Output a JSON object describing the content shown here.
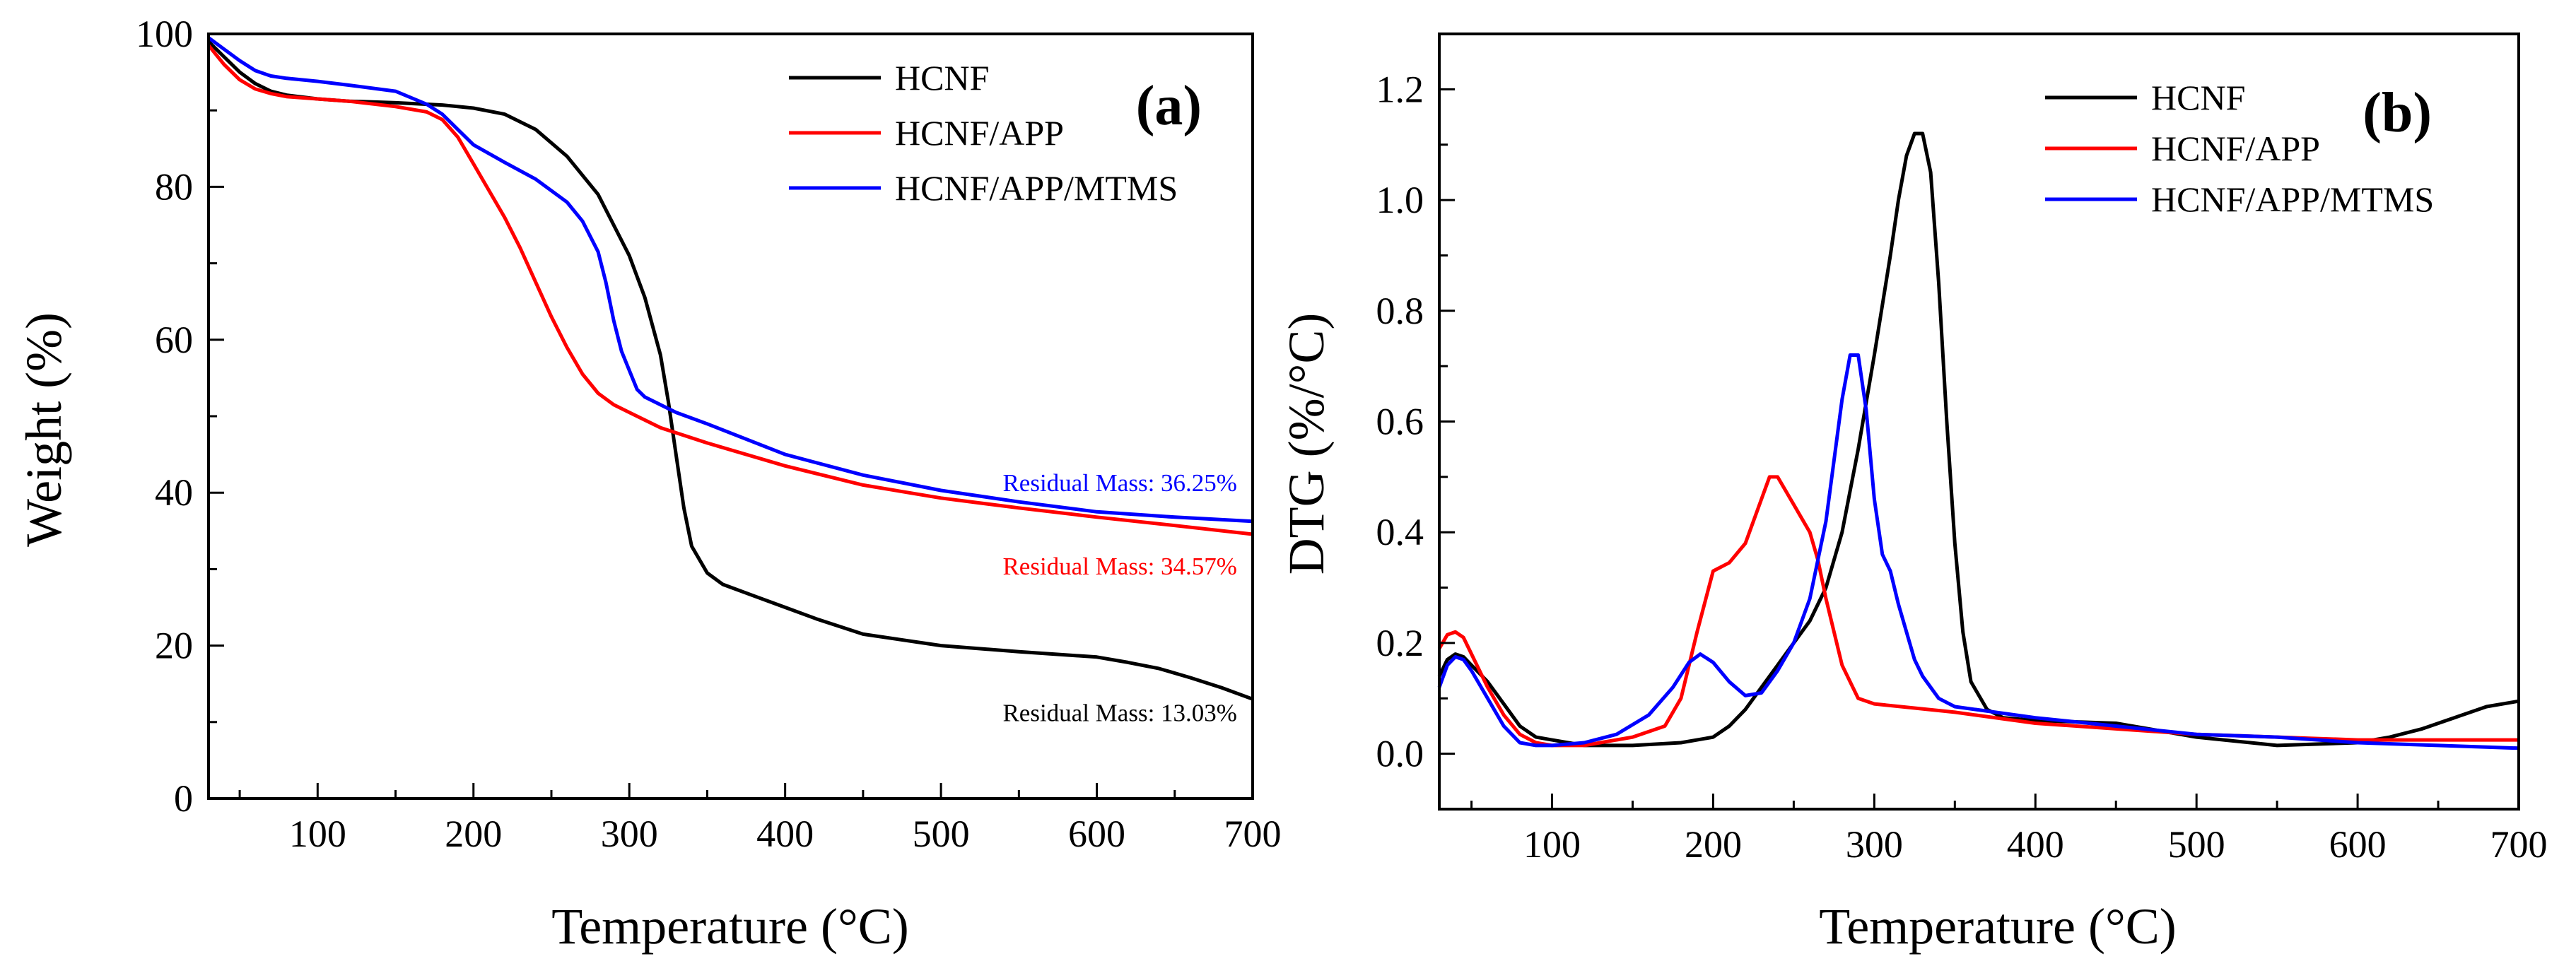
{
  "chart_data": [
    {
      "type": "line",
      "panel_label": "(a)",
      "xlabel": "Temperature (°C)",
      "ylabel": "Weight (%)",
      "xlim": [
        30,
        700
      ],
      "ylim": [
        0,
        100
      ],
      "xticks": [
        100,
        200,
        300,
        400,
        500,
        600,
        700
      ],
      "yticks": [
        0,
        20,
        40,
        60,
        80,
        100
      ],
      "grid": false,
      "legend_position": "top-right",
      "series": [
        {
          "name": "HCNF",
          "color": "#000000",
          "x": [
            30,
            40,
            50,
            60,
            70,
            80,
            100,
            120,
            150,
            180,
            200,
            220,
            240,
            260,
            280,
            300,
            310,
            320,
            325,
            330,
            335,
            340,
            350,
            360,
            380,
            400,
            420,
            450,
            500,
            550,
            600,
            620,
            640,
            660,
            680,
            700
          ],
          "y": [
            99,
            97,
            95,
            93.5,
            92.5,
            92,
            91.5,
            91.2,
            91,
            90.7,
            90.3,
            89.5,
            87.5,
            84,
            79,
            71,
            65.5,
            58,
            52,
            45,
            38,
            33,
            29.5,
            28,
            26.5,
            25,
            23.5,
            21.5,
            20,
            19.2,
            18.5,
            17.8,
            17,
            15.8,
            14.5,
            13
          ]
        },
        {
          "name": "HCNF/APP",
          "color": "#ff0000",
          "x": [
            30,
            40,
            50,
            60,
            70,
            80,
            100,
            120,
            150,
            170,
            180,
            190,
            200,
            210,
            220,
            230,
            240,
            250,
            260,
            270,
            280,
            290,
            300,
            320,
            350,
            400,
            450,
            500,
            550,
            600,
            650,
            700
          ],
          "y": [
            98.5,
            96,
            94,
            92.8,
            92.2,
            91.8,
            91.5,
            91.2,
            90.5,
            89.8,
            88.8,
            86.5,
            83,
            79.5,
            76,
            72,
            67.5,
            63,
            59,
            55.5,
            53,
            51.5,
            50.5,
            48.5,
            46.5,
            43.5,
            41,
            39.3,
            38,
            36.8,
            35.7,
            34.57
          ]
        },
        {
          "name": "HCNF/APP/MTMS",
          "color": "#0000ff",
          "x": [
            30,
            40,
            50,
            60,
            70,
            80,
            100,
            120,
            150,
            170,
            180,
            190,
            200,
            220,
            240,
            260,
            270,
            280,
            285,
            290,
            295,
            300,
            305,
            310,
            320,
            330,
            350,
            400,
            450,
            500,
            550,
            600,
            650,
            700
          ],
          "y": [
            99.5,
            98,
            96.5,
            95.2,
            94.5,
            94.2,
            93.8,
            93.3,
            92.5,
            90.8,
            89.5,
            87.5,
            85.5,
            83.2,
            81,
            78,
            75.5,
            71.5,
            67.5,
            62.5,
            58.5,
            56,
            53.5,
            52.5,
            51.5,
            50.5,
            49,
            45,
            42.3,
            40.3,
            38.8,
            37.5,
            36.8,
            36.25
          ]
        }
      ],
      "annotations": [
        {
          "text": "Residual Mass: 36.25%",
          "color": "#0000ff",
          "x": 690,
          "y": 40.2
        },
        {
          "text": "Residual Mass: 34.57%",
          "color": "#ff0000",
          "x": 690,
          "y": 29.3
        },
        {
          "text": "Residual Mass: 13.03%",
          "color": "#000000",
          "x": 690,
          "y": 10.1
        }
      ]
    },
    {
      "type": "line",
      "panel_label": "(b)",
      "xlabel": "Temperature (°C)",
      "ylabel": "DTG (%/°C)",
      "xlim": [
        30,
        700
      ],
      "ylim": [
        -0.1,
        1.3
      ],
      "xticks": [
        100,
        200,
        300,
        400,
        500,
        600,
        700
      ],
      "yticks": [
        0.0,
        0.2,
        0.4,
        0.6,
        0.8,
        1.0,
        1.2
      ],
      "grid": false,
      "legend_position": "top-right",
      "series": [
        {
          "name": "HCNF",
          "color": "#000000",
          "x": [
            30,
            35,
            40,
            45,
            50,
            60,
            70,
            80,
            90,
            100,
            120,
            150,
            180,
            200,
            210,
            220,
            230,
            240,
            250,
            260,
            270,
            280,
            290,
            300,
            310,
            315,
            320,
            325,
            330,
            335,
            340,
            345,
            350,
            355,
            360,
            370,
            380,
            400,
            450,
            500,
            550,
            600,
            620,
            640,
            660,
            680,
            700
          ],
          "y": [
            0.14,
            0.17,
            0.18,
            0.175,
            0.16,
            0.13,
            0.09,
            0.05,
            0.03,
            0.025,
            0.015,
            0.015,
            0.02,
            0.03,
            0.05,
            0.08,
            0.12,
            0.16,
            0.2,
            0.24,
            0.3,
            0.4,
            0.55,
            0.72,
            0.9,
            1.0,
            1.08,
            1.12,
            1.12,
            1.05,
            0.85,
            0.6,
            0.38,
            0.22,
            0.13,
            0.08,
            0.065,
            0.06,
            0.055,
            0.03,
            0.015,
            0.02,
            0.03,
            0.045,
            0.065,
            0.085,
            0.095
          ]
        },
        {
          "name": "HCNF/APP",
          "color": "#ff0000",
          "x": [
            30,
            35,
            40,
            45,
            50,
            60,
            70,
            80,
            90,
            100,
            120,
            150,
            170,
            180,
            190,
            200,
            210,
            220,
            230,
            235,
            240,
            250,
            260,
            265,
            270,
            280,
            290,
            300,
            350,
            400,
            450,
            500,
            550,
            600,
            650,
            700
          ],
          "y": [
            0.19,
            0.215,
            0.22,
            0.21,
            0.18,
            0.12,
            0.07,
            0.035,
            0.02,
            0.015,
            0.015,
            0.03,
            0.05,
            0.1,
            0.22,
            0.33,
            0.345,
            0.38,
            0.46,
            0.5,
            0.5,
            0.45,
            0.4,
            0.35,
            0.28,
            0.16,
            0.1,
            0.09,
            0.075,
            0.055,
            0.045,
            0.035,
            0.03,
            0.025,
            0.025,
            0.025
          ]
        },
        {
          "name": "HCNF/APP/MTMS",
          "color": "#0000ff",
          "x": [
            30,
            35,
            40,
            45,
            50,
            60,
            70,
            80,
            90,
            100,
            120,
            140,
            160,
            175,
            185,
            192,
            200,
            210,
            220,
            230,
            240,
            250,
            260,
            270,
            275,
            280,
            285,
            290,
            295,
            300,
            305,
            310,
            315,
            320,
            325,
            330,
            335,
            340,
            350,
            400,
            450,
            500,
            550,
            600,
            650,
            700
          ],
          "y": [
            0.12,
            0.16,
            0.175,
            0.17,
            0.15,
            0.1,
            0.05,
            0.02,
            0.015,
            0.015,
            0.02,
            0.035,
            0.07,
            0.12,
            0.165,
            0.18,
            0.165,
            0.13,
            0.105,
            0.11,
            0.15,
            0.2,
            0.28,
            0.42,
            0.53,
            0.64,
            0.72,
            0.72,
            0.62,
            0.46,
            0.36,
            0.33,
            0.27,
            0.22,
            0.17,
            0.14,
            0.12,
            0.1,
            0.085,
            0.065,
            0.05,
            0.035,
            0.03,
            0.02,
            0.015,
            0.01
          ]
        }
      ]
    }
  ]
}
